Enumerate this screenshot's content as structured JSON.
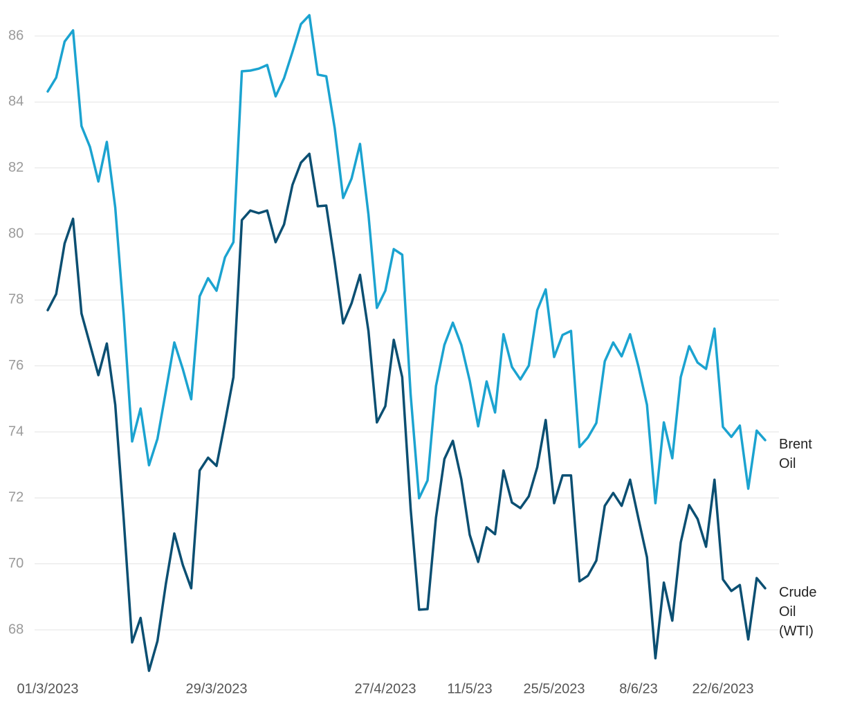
{
  "chart_data": {
    "type": "line",
    "categories": [
      "01/3/2023",
      null,
      null,
      null,
      null,
      null,
      null,
      null,
      null,
      null,
      null,
      null,
      null,
      null,
      null,
      null,
      null,
      null,
      null,
      null,
      "29/3/2023",
      null,
      null,
      null,
      null,
      null,
      null,
      null,
      null,
      null,
      null,
      null,
      null,
      null,
      null,
      null,
      null,
      null,
      null,
      null,
      "27/4/2023",
      null,
      null,
      null,
      null,
      null,
      null,
      null,
      null,
      null,
      "11/5/23",
      null,
      null,
      null,
      null,
      null,
      null,
      null,
      null,
      null,
      "25/5/2023",
      null,
      null,
      null,
      null,
      null,
      null,
      null,
      null,
      null,
      "8/6/23",
      null,
      null,
      null,
      null,
      null,
      null,
      null,
      null,
      null,
      "22/6/2023",
      null,
      null,
      null,
      null,
      null
    ],
    "series": [
      {
        "name": "Brent Oil",
        "color": "#1ba3d0",
        "values": [
          84.32,
          84.74,
          85.83,
          86.17,
          83.27,
          82.64,
          81.59,
          82.79,
          80.8,
          77.55,
          73.71,
          74.71,
          72.99,
          73.79,
          75.24,
          76.71,
          75.91,
          74.99,
          78.11,
          78.66,
          78.28,
          79.29,
          79.75,
          84.93,
          84.95,
          85.01,
          85.12,
          84.17,
          84.72,
          85.52,
          86.36,
          86.63,
          84.83,
          84.78,
          83.21,
          81.09,
          81.68,
          82.73,
          80.59,
          77.76,
          78.28,
          79.54,
          79.37,
          75.13,
          71.99,
          72.53,
          75.39,
          76.64,
          77.31,
          76.64,
          75.55,
          74.17,
          75.53,
          74.59,
          76.96,
          75.97,
          75.59,
          76.01,
          77.69,
          78.32,
          76.27,
          76.94,
          77.06,
          73.54,
          73.83,
          74.27,
          76.14,
          76.71,
          76.29,
          76.96,
          75.97,
          74.82,
          71.84,
          74.29,
          73.2,
          75.66,
          76.6,
          76.1,
          75.91,
          77.13,
          74.15,
          73.85,
          74.19,
          72.28,
          74.04,
          73.75
        ]
      },
      {
        "name": "Crude Oil (WTI)",
        "color": "#0b4f72",
        "values": [
          77.69,
          78.18,
          79.71,
          80.46,
          77.59,
          76.66,
          75.72,
          76.68,
          74.82,
          71.36,
          67.62,
          68.36,
          66.76,
          67.66,
          69.4,
          70.92,
          69.97,
          69.26,
          72.83,
          73.22,
          72.97,
          74.29,
          75.66,
          80.42,
          80.71,
          80.63,
          80.71,
          79.75,
          80.29,
          81.49,
          82.16,
          82.43,
          80.84,
          80.86,
          79.16,
          77.29,
          77.9,
          78.76,
          77.06,
          74.29,
          74.78,
          76.79,
          75.66,
          71.67,
          68.61,
          68.63,
          71.4,
          73.18,
          73.73,
          72.57,
          70.88,
          70.06,
          71.11,
          70.9,
          72.83,
          71.86,
          71.69,
          72.05,
          72.93,
          74.36,
          71.84,
          72.68,
          72.68,
          69.47,
          69.64,
          70.1,
          71.76,
          72.15,
          71.76,
          72.55,
          71.36,
          70.2,
          67.14,
          69.43,
          68.28,
          70.65,
          71.78,
          71.36,
          70.52,
          72.55,
          69.53,
          69.18,
          69.36,
          67.71,
          69.57,
          69.26
        ]
      }
    ],
    "ylim": [
      66.6,
      86.8
    ],
    "yticks": [
      68,
      70,
      72,
      74,
      76,
      78,
      80,
      82,
      84,
      86
    ],
    "grid": true
  }
}
